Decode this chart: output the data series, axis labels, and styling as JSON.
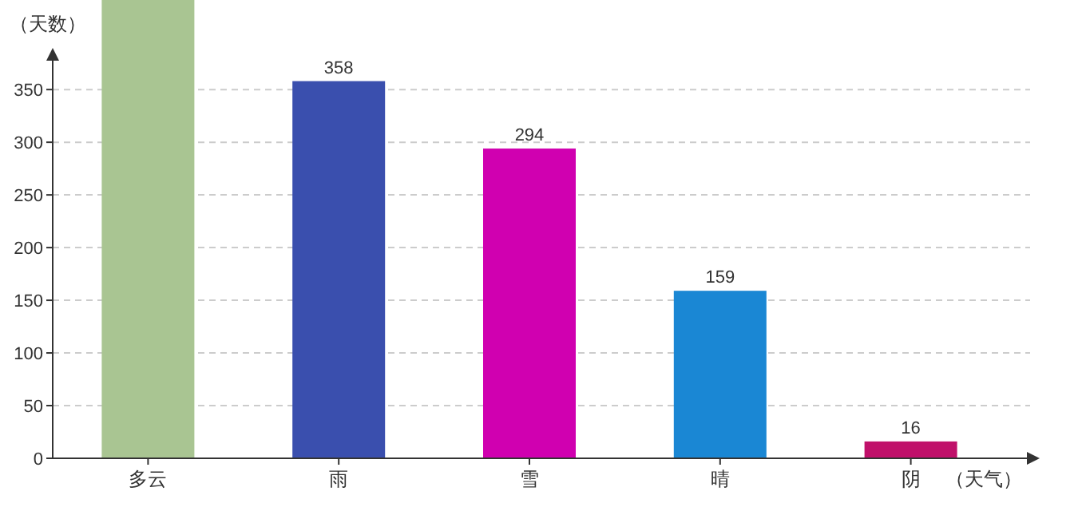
{
  "chart_data": {
    "type": "bar",
    "ylabel": "（天数）",
    "xlabel": "（天气）",
    "categories": [
      "多云",
      "雨",
      "雪",
      "晴",
      "阴"
    ],
    "values": [
      435,
      358,
      294,
      159,
      16
    ],
    "value_labels": [
      null,
      "358",
      "294",
      "159",
      "16"
    ],
    "colors": [
      "#a9c592",
      "#3a4fae",
      "#d000b0",
      "#1a87d4",
      "#c0106a"
    ],
    "ylim": [
      0,
      435
    ],
    "yticks": [
      0,
      50,
      100,
      150,
      200,
      250,
      300,
      350
    ],
    "grid": "y"
  }
}
